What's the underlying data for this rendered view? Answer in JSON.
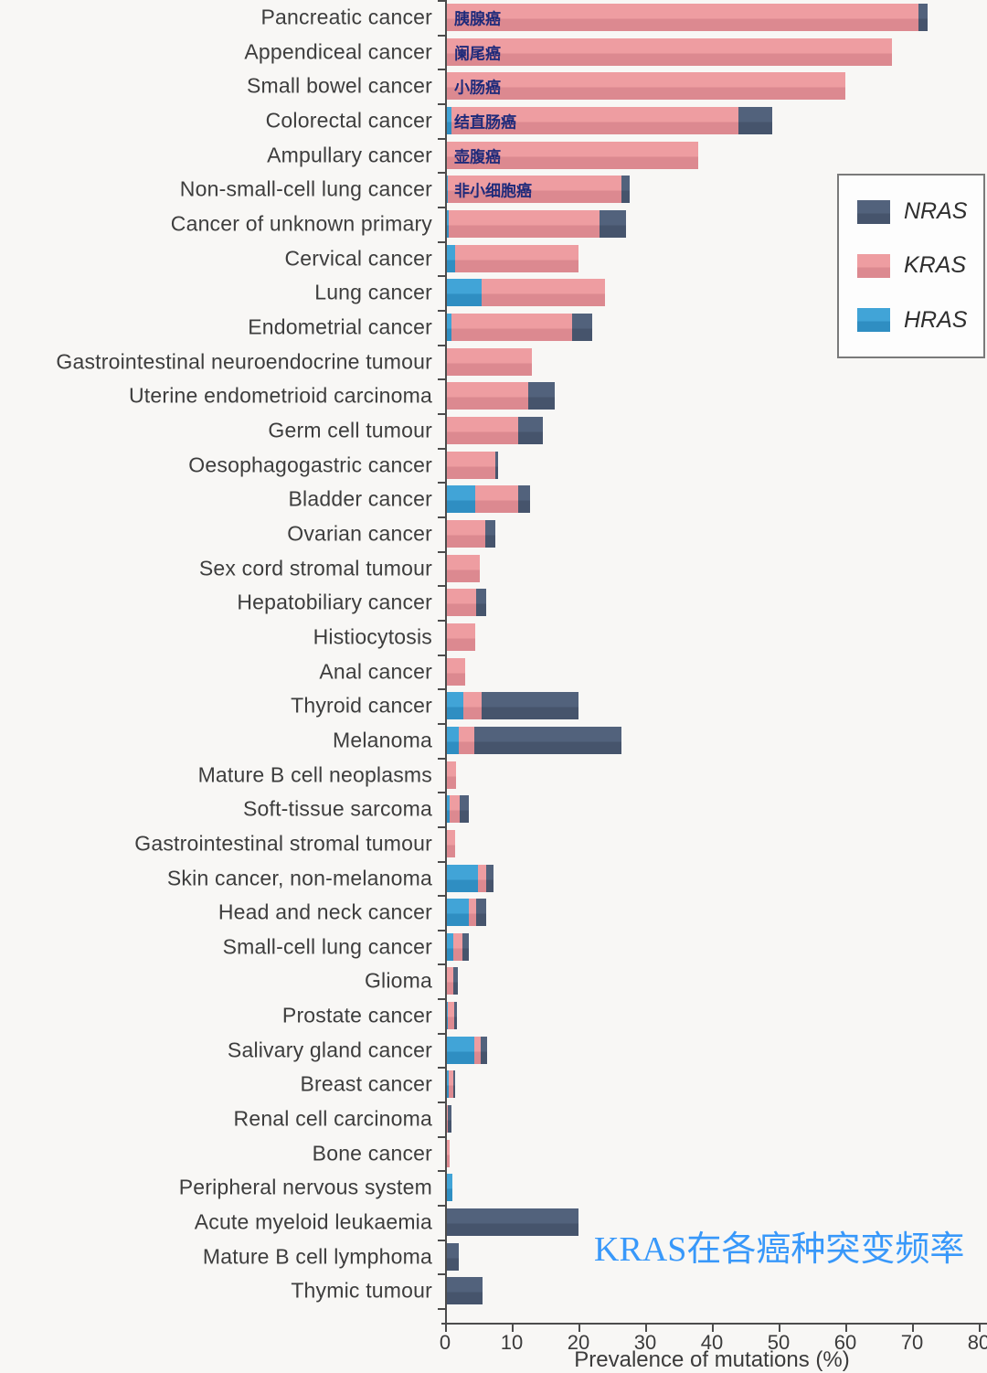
{
  "watermark": {
    "text": "KRAS在各癌种突变频率",
    "color": "#3898fa"
  },
  "chart_data": {
    "type": "bar",
    "orientation": "horizontal",
    "stacked": true,
    "title": "",
    "xlabel": "Prevalence of mutations (%)",
    "ylabel": "",
    "xlim": [
      0,
      81
    ],
    "xticks": [
      0,
      10,
      20,
      30,
      40,
      50,
      60,
      70,
      80
    ],
    "grid": false,
    "legend_position": "upper right",
    "legend": [
      {
        "label": "NRAS",
        "color": "#4d5c79"
      },
      {
        "label": "KRAS",
        "color": "#ec9a9e"
      },
      {
        "label": "HRAS",
        "color": "#3a9fd3"
      }
    ],
    "stack_order_left_to_right": [
      "HRAS",
      "KRAS",
      "NRAS"
    ],
    "categories": [
      "Pancreatic cancer",
      "Appendiceal cancer",
      "Small bowel cancer",
      "Colorectal cancer",
      "Ampullary cancer",
      "Non-small-cell lung cancer",
      "Cancer of unknown primary",
      "Cervical cancer",
      "Lung cancer",
      "Endometrial cancer",
      "Gastrointestinal neuroendocrine tumour",
      "Uterine endometrioid carcinoma",
      "Germ cell tumour",
      "Oesophagogastric cancer",
      "Bladder cancer",
      "Ovarian cancer",
      "Sex cord stromal tumour",
      "Hepatobiliary cancer",
      "Histiocytosis",
      "Anal cancer",
      "Thyroid cancer",
      "Melanoma",
      "Mature B cell neoplasms",
      "Soft-tissue sarcoma",
      "Gastrointestinal stromal tumour",
      "Skin cancer, non-melanoma",
      "Head and neck cancer",
      "Small-cell lung cancer",
      "Glioma",
      "Prostate cancer",
      "Salivary gland cancer",
      "Breast cancer",
      "Renal cell carcinoma",
      "Bone cancer",
      "Peripheral nervous system",
      "Acute myeloid leukaemia",
      "Mature B cell lymphoma",
      "Thymic tumour"
    ],
    "series": [
      {
        "name": "HRAS",
        "values": [
          0,
          0,
          0,
          1,
          0,
          0.4,
          0.6,
          1.5,
          5.5,
          1,
          0,
          0,
          0,
          0,
          4.5,
          0,
          0,
          0,
          0,
          0,
          2.7,
          2,
          0,
          0.7,
          0,
          4.9,
          3.6,
          1.2,
          0,
          0.4,
          4.4,
          0.5,
          0,
          0,
          1.1,
          0,
          0,
          0
        ]
      },
      {
        "name": "KRAS",
        "values": [
          71,
          67,
          60,
          43,
          38,
          26,
          22.5,
          18.5,
          18.5,
          18,
          13,
          12.5,
          11,
          7.5,
          6.5,
          6,
          5.2,
          4.7,
          4.5,
          3,
          2.8,
          2.4,
          1.6,
          1.5,
          1.5,
          1.3,
          1,
          1.4,
          1.2,
          1,
          1,
          0.7,
          0.4,
          0.7,
          0,
          0,
          0,
          0
        ]
      },
      {
        "name": "NRAS",
        "values": [
          1.3,
          0,
          0,
          5,
          0,
          1.3,
          4,
          0,
          0,
          3,
          0,
          4,
          3.7,
          0.5,
          1.7,
          1.5,
          0,
          1.5,
          0,
          0,
          14.5,
          22,
          0,
          1.4,
          0,
          1,
          1.5,
          1,
          0.7,
          0.4,
          0.9,
          0.3,
          0.5,
          0,
          0,
          20,
          2,
          5.6
        ]
      }
    ],
    "bar_annotations": [
      {
        "index": 0,
        "text": "胰腺癌"
      },
      {
        "index": 1,
        "text": "阑尾癌"
      },
      {
        "index": 2,
        "text": "小肠癌"
      },
      {
        "index": 3,
        "text": "结直肠癌"
      },
      {
        "index": 4,
        "text": "壶腹癌"
      },
      {
        "index": 5,
        "text": "非小细胞癌"
      }
    ]
  }
}
